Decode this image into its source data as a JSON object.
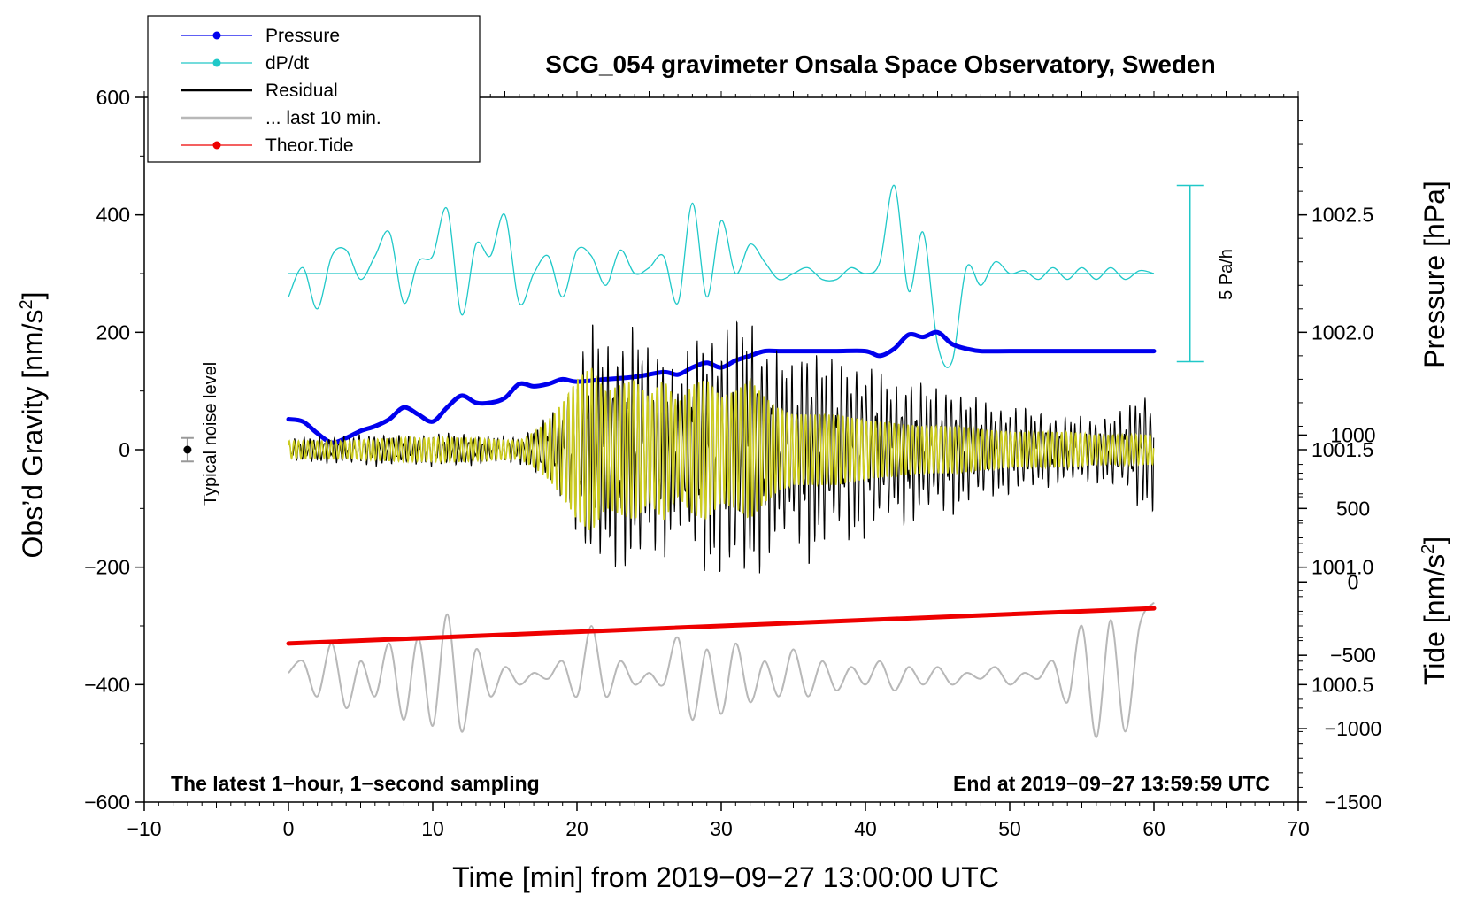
{
  "chart_data": {
    "type": "line",
    "title": "SCG_054 gravimeter Onsala Space Observatory, Sweden",
    "xlabel": "Time [min] from 2019−09−27 13:00:00 UTC",
    "ylabel_left_main": "Obs’d Gravity [nm/s",
    "ylabel_left_sup": "2",
    "ylabel_left_close": "]",
    "ylabel_right_pressure": "Pressure [hPa]",
    "ylabel_right_tide_main": "Tide [nm/s",
    "ylabel_right_tide_sup": "2",
    "ylabel_right_tide_close": "]",
    "xlim": [
      -10,
      70
    ],
    "ylim": [
      -600,
      600
    ],
    "pressure_lim": [
      1000.0,
      1003.0
    ],
    "tide_lim": [
      -1500,
      3300
    ],
    "x_ticks": [
      {
        "v": -10,
        "label": "−10"
      },
      {
        "v": 0,
        "label": "0"
      },
      {
        "v": 10,
        "label": "10"
      },
      {
        "v": 20,
        "label": "20"
      },
      {
        "v": 30,
        "label": "30"
      },
      {
        "v": 40,
        "label": "40"
      },
      {
        "v": 50,
        "label": "50"
      },
      {
        "v": 60,
        "label": "60"
      },
      {
        "v": 70,
        "label": "70"
      }
    ],
    "y_ticks": [
      {
        "v": 600,
        "label": "600"
      },
      {
        "v": 400,
        "label": "400"
      },
      {
        "v": 200,
        "label": "200"
      },
      {
        "v": 0,
        "label": "0"
      },
      {
        "v": -200,
        "label": "−200"
      },
      {
        "v": -400,
        "label": "−400"
      },
      {
        "v": -600,
        "label": "−600"
      }
    ],
    "pressure_ticks": [
      {
        "v": 1002.5,
        "label": "1002.5"
      },
      {
        "v": 1002.0,
        "label": "1002.0"
      },
      {
        "v": 1001.5,
        "label": "1001.5"
      },
      {
        "v": 1001.0,
        "label": "1001.0"
      },
      {
        "v": 1000.5,
        "label": "1000.5"
      }
    ],
    "tide_ticks": [
      {
        "v": 1000,
        "label": "1000"
      },
      {
        "v": 500,
        "label": "500"
      },
      {
        "v": 0,
        "label": "0"
      },
      {
        "v": -500,
        "label": "−500"
      },
      {
        "v": -1000,
        "label": "−1000"
      },
      {
        "v": -1500,
        "label": "−1500"
      }
    ],
    "legend": [
      {
        "label": "Pressure",
        "color": "#0000ee",
        "marker": true
      },
      {
        "label": "dP/dt",
        "color": "#20c8c8",
        "marker": true
      },
      {
        "label": "Residual",
        "color": "#000000",
        "marker": false
      },
      {
        "label": "... last 10 min.",
        "color": "#b8b8b8",
        "marker": false
      },
      {
        "label": "Theor.Tide",
        "color": "#ee0000",
        "marker": true
      }
    ],
    "notes": {
      "left": "The latest 1−hour, 1−second sampling",
      "right": "End at 2019−09−27 13:59:59 UTC",
      "noise": "Typical noise level",
      "scale": "5 Pa/h"
    },
    "noise_bar": {
      "x": -7,
      "y": 0,
      "half_range": 20
    },
    "scale_bar": {
      "x": 62.5,
      "y_top": 450,
      "y_bottom": 150
    },
    "dpdt_baseline": 300,
    "pressure": {
      "x": [
        0,
        1,
        2,
        3,
        4,
        5,
        6,
        7,
        8,
        9,
        10,
        11,
        12,
        13,
        14,
        15,
        16,
        17,
        18,
        19,
        20,
        22,
        24,
        26,
        27,
        28,
        29,
        30,
        31,
        32,
        33,
        34,
        36,
        38,
        40,
        41,
        42,
        43,
        44,
        45,
        46,
        47,
        48,
        50,
        55,
        60
      ],
      "y": [
        1001.63,
        1001.62,
        1001.57,
        1001.53,
        1001.55,
        1001.58,
        1001.6,
        1001.63,
        1001.68,
        1001.65,
        1001.62,
        1001.68,
        1001.73,
        1001.7,
        1001.7,
        1001.72,
        1001.78,
        1001.77,
        1001.78,
        1001.8,
        1001.79,
        1001.8,
        1001.81,
        1001.83,
        1001.82,
        1001.85,
        1001.87,
        1001.85,
        1001.88,
        1001.9,
        1001.92,
        1001.92,
        1001.92,
        1001.92,
        1001.92,
        1001.9,
        1001.93,
        1001.99,
        1001.98,
        1002.0,
        1001.95,
        1001.93,
        1001.92,
        1001.92,
        1001.92,
        1001.92
      ]
    },
    "dpdt": {
      "x": [
        0,
        1,
        2,
        3,
        4,
        5,
        6,
        7,
        8,
        9,
        10,
        11,
        12,
        13,
        14,
        15,
        16,
        17,
        18,
        19,
        20,
        21,
        22,
        23,
        24,
        25,
        26,
        27,
        28,
        29,
        30,
        31,
        32,
        33,
        34,
        35,
        36,
        37,
        38,
        39,
        40,
        41,
        42,
        43,
        44,
        45,
        46,
        47,
        48,
        49,
        50,
        51,
        52,
        53,
        54,
        55,
        56,
        57,
        58,
        59,
        60
      ],
      "y": [
        260,
        310,
        240,
        330,
        340,
        290,
        330,
        370,
        250,
        320,
        330,
        410,
        230,
        350,
        330,
        400,
        250,
        300,
        330,
        260,
        340,
        330,
        280,
        340,
        300,
        310,
        330,
        250,
        420,
        260,
        390,
        300,
        350,
        320,
        290,
        300,
        310,
        290,
        290,
        310,
        300,
        320,
        450,
        270,
        370,
        180,
        150,
        310,
        280,
        320,
        300,
        305,
        290,
        310,
        290,
        310,
        290,
        310,
        290,
        305,
        300
      ]
    },
    "residual": {
      "x": [
        0,
        2,
        4,
        6,
        8,
        10,
        12,
        14,
        16,
        17,
        18,
        19,
        20,
        21,
        22,
        23,
        24,
        25,
        26,
        27,
        28,
        29,
        30,
        31,
        32,
        33,
        34,
        35,
        36,
        37,
        38,
        39,
        40,
        41,
        42,
        43,
        44,
        45,
        46,
        47,
        48,
        50,
        52,
        54,
        56,
        58,
        59,
        60
      ],
      "y_amplitude": [
        20,
        25,
        25,
        30,
        25,
        30,
        30,
        25,
        25,
        40,
        60,
        90,
        150,
        230,
        200,
        210,
        230,
        180,
        200,
        140,
        190,
        230,
        220,
        230,
        250,
        200,
        180,
        150,
        210,
        180,
        150,
        170,
        160,
        140,
        120,
        140,
        120,
        110,
        120,
        100,
        90,
        80,
        70,
        60,
        60,
        70,
        110,
        110
      ]
    },
    "lowpass": {
      "x": [
        0,
        4,
        8,
        12,
        16,
        17,
        18,
        19,
        20,
        21,
        22,
        23,
        24,
        25,
        26,
        27,
        28,
        29,
        30,
        31,
        32,
        33,
        34,
        35,
        36,
        38,
        40,
        42,
        44,
        46,
        48,
        50,
        52,
        54,
        56,
        58,
        60
      ],
      "y_amplitude": [
        15,
        15,
        20,
        20,
        15,
        30,
        50,
        80,
        120,
        140,
        100,
        110,
        120,
        90,
        120,
        80,
        110,
        120,
        90,
        100,
        120,
        90,
        70,
        60,
        60,
        60,
        50,
        45,
        40,
        40,
        35,
        30,
        30,
        30,
        25,
        25,
        25
      ]
    },
    "last10": {
      "x": [
        0,
        1,
        2,
        3,
        4,
        5,
        6,
        7,
        8,
        9,
        10,
        11,
        12,
        13,
        14,
        15,
        16,
        17,
        18,
        19,
        20,
        21,
        22,
        23,
        24,
        25,
        26,
        27,
        28,
        29,
        30,
        31,
        32,
        33,
        34,
        35,
        36,
        37,
        38,
        39,
        40,
        41,
        42,
        43,
        44,
        45,
        46,
        47,
        48,
        49,
        50,
        51,
        52,
        53,
        54,
        55,
        56,
        57,
        58,
        59,
        60
      ],
      "y": [
        -380,
        -360,
        -420,
        -330,
        -440,
        -360,
        -420,
        -330,
        -460,
        -320,
        -470,
        -280,
        -480,
        -340,
        -420,
        -370,
        -400,
        -380,
        -390,
        -360,
        -420,
        -300,
        -420,
        -360,
        -400,
        -380,
        -400,
        -320,
        -460,
        -340,
        -450,
        -330,
        -430,
        -360,
        -420,
        -340,
        -420,
        -360,
        -410,
        -370,
        -400,
        -360,
        -410,
        -370,
        -400,
        -370,
        -400,
        -380,
        -390,
        -370,
        -400,
        -380,
        -390,
        -360,
        -430,
        -300,
        -490,
        -290,
        -480,
        -300,
        -260
      ]
    },
    "tide": {
      "x": [
        0,
        60
      ],
      "y": [
        -330,
        -270
      ]
    }
  }
}
